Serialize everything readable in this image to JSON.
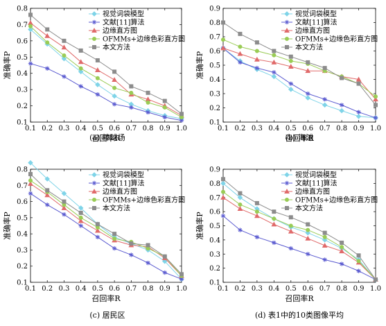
{
  "legend": [
    "视觉词袋模型",
    "文献[11]算法",
    "边缘直方图",
    "OFMMs+边缘色彩直方图",
    "本文方法"
  ],
  "series_styles": [
    {
      "color": "#7fd4e8",
      "marker": "diamond"
    },
    {
      "color": "#5a5ad0",
      "marker": "star"
    },
    {
      "color": "#e06a6a",
      "marker": "triangle"
    },
    {
      "color": "#9acc55",
      "marker": "circle"
    },
    {
      "color": "#8c8c8c",
      "marker": "square"
    }
  ],
  "chart_data": [
    {
      "type": "line",
      "caption": "(a) 棒球场",
      "xlabel": "召回率R",
      "ylabel": "准确率P",
      "xlim": [
        0.1,
        1.0
      ],
      "ylim": [
        0.1,
        0.8
      ],
      "xticks": [
        "0.1",
        "0.2",
        "0.3",
        "0.4",
        "0.5",
        "0.6",
        "0.7",
        "0.8",
        "0.9",
        "1.0"
      ],
      "yticks": [
        "0.1",
        "0.2",
        "0.3",
        "0.4",
        "0.5",
        "0.6",
        "0.7",
        "0.8"
      ],
      "x": [
        0.1,
        0.2,
        0.3,
        0.4,
        0.5,
        0.6,
        0.7,
        0.8,
        0.9,
        1.0
      ],
      "series": [
        {
          "name": "视觉词袋模型",
          "values": [
            0.67,
            0.58,
            0.49,
            0.41,
            0.33,
            0.26,
            0.21,
            0.17,
            0.14,
            0.12
          ]
        },
        {
          "name": "文献[11]算法",
          "values": [
            0.46,
            0.43,
            0.38,
            0.32,
            0.27,
            0.21,
            0.19,
            0.16,
            0.13,
            0.11
          ]
        },
        {
          "name": "边缘直方图",
          "values": [
            0.71,
            0.63,
            0.56,
            0.47,
            0.42,
            0.36,
            0.27,
            0.24,
            0.2,
            0.14
          ]
        },
        {
          "name": "OFMMs+边缘色彩直方图",
          "values": [
            0.69,
            0.59,
            0.51,
            0.43,
            0.37,
            0.31,
            0.28,
            0.22,
            0.19,
            0.13
          ]
        },
        {
          "name": "本文方法",
          "values": [
            0.76,
            0.67,
            0.6,
            0.54,
            0.48,
            0.41,
            0.32,
            0.28,
            0.23,
            0.15
          ]
        }
      ]
    },
    {
      "type": "line",
      "caption": "(b) 海滩",
      "xlabel": "召回率R",
      "ylabel": "准确率P",
      "xlim": [
        0.1,
        1.0
      ],
      "ylim": [
        0.1,
        0.9
      ],
      "xticks": [
        "0.1",
        "0.2",
        "0.3",
        "0.4",
        "0.5",
        "0.6",
        "0.7",
        "0.8",
        "0.9",
        "1.0"
      ],
      "yticks": [
        "0.1",
        "0.2",
        "0.3",
        "0.4",
        "0.5",
        "0.6",
        "0.7",
        "0.8",
        "0.9"
      ],
      "x": [
        0.1,
        0.2,
        0.3,
        0.4,
        0.5,
        0.6,
        0.7,
        0.8,
        0.9,
        1.0
      ],
      "series": [
        {
          "name": "视觉词袋模型",
          "values": [
            0.62,
            0.53,
            0.47,
            0.42,
            0.33,
            0.27,
            0.22,
            0.18,
            0.14,
            0.13
          ]
        },
        {
          "name": "文献[11]算法",
          "values": [
            0.62,
            0.52,
            0.48,
            0.45,
            0.37,
            0.3,
            0.26,
            0.22,
            0.17,
            0.13
          ]
        },
        {
          "name": "边缘直方图",
          "values": [
            0.62,
            0.58,
            0.54,
            0.52,
            0.49,
            0.46,
            0.46,
            0.42,
            0.4,
            0.26
          ]
        },
        {
          "name": "OFMMs+边缘色彩直方图",
          "values": [
            0.68,
            0.63,
            0.6,
            0.57,
            0.53,
            0.51,
            0.46,
            0.42,
            0.37,
            0.28
          ]
        },
        {
          "name": "本文方法",
          "values": [
            0.8,
            0.72,
            0.66,
            0.6,
            0.56,
            0.52,
            0.48,
            0.41,
            0.37,
            0.22
          ]
        }
      ]
    },
    {
      "type": "line",
      "caption": "(c) 居民区",
      "xlabel": "召回率R",
      "ylabel": "准确率P",
      "xlim": [
        0.1,
        1.0
      ],
      "ylim": [
        0.1,
        0.8
      ],
      "xticks": [
        "0.1",
        "0.2",
        "0.3",
        "0.4",
        "0.5",
        "0.6",
        "0.7",
        "0.8",
        "0.9",
        "1.0"
      ],
      "yticks": [
        "0.1",
        "0.2",
        "0.3",
        "0.4",
        "0.5",
        "0.6",
        "0.7",
        "0.8"
      ],
      "x": [
        0.1,
        0.2,
        0.3,
        0.4,
        0.5,
        0.6,
        0.7,
        0.8,
        0.9,
        1.0
      ],
      "series": [
        {
          "name": "视觉词袋模型",
          "values": [
            0.84,
            0.74,
            0.65,
            0.56,
            0.46,
            0.38,
            0.34,
            0.3,
            0.23,
            0.12
          ]
        },
        {
          "name": "文献[11]算法",
          "values": [
            0.65,
            0.58,
            0.52,
            0.45,
            0.38,
            0.31,
            0.27,
            0.22,
            0.16,
            0.12
          ]
        },
        {
          "name": "边缘直方图",
          "values": [
            0.71,
            0.64,
            0.56,
            0.48,
            0.42,
            0.36,
            0.33,
            0.32,
            0.25,
            0.14
          ]
        },
        {
          "name": "OFMMs+边缘色彩直方图",
          "values": [
            0.73,
            0.66,
            0.58,
            0.5,
            0.44,
            0.37,
            0.35,
            0.31,
            0.26,
            0.14
          ]
        },
        {
          "name": "本文方法",
          "values": [
            0.77,
            0.67,
            0.6,
            0.53,
            0.46,
            0.4,
            0.34,
            0.33,
            0.26,
            0.15
          ]
        }
      ]
    },
    {
      "type": "line",
      "caption": "(d) 表1中的10类图像平均",
      "xlabel": "召回率R",
      "ylabel": "准确率P",
      "xlim": [
        0.1,
        1.0
      ],
      "ylim": [
        0.1,
        0.9
      ],
      "xticks": [
        "0.1",
        "0.2",
        "0.3",
        "0.4",
        "0.5",
        "0.6",
        "0.7",
        "0.8",
        "0.9",
        "1.0"
      ],
      "yticks": [
        "0.1",
        "0.2",
        "0.3",
        "0.4",
        "0.5",
        "0.6",
        "0.7",
        "0.8",
        "0.9"
      ],
      "x": [
        0.1,
        0.2,
        0.3,
        0.4,
        0.5,
        0.6,
        0.7,
        0.8,
        0.9,
        1.0
      ],
      "series": [
        {
          "name": "视觉词袋模型",
          "values": [
            0.8,
            0.7,
            0.62,
            0.55,
            0.49,
            0.45,
            0.4,
            0.34,
            0.26,
            0.12
          ]
        },
        {
          "name": "文献[11]算法",
          "values": [
            0.57,
            0.47,
            0.42,
            0.38,
            0.34,
            0.3,
            0.26,
            0.23,
            0.18,
            0.12
          ]
        },
        {
          "name": "边缘直方图",
          "values": [
            0.7,
            0.62,
            0.57,
            0.51,
            0.46,
            0.41,
            0.36,
            0.32,
            0.24,
            0.12
          ]
        },
        {
          "name": "OFMMs+边缘色彩直方图",
          "values": [
            0.74,
            0.65,
            0.6,
            0.55,
            0.5,
            0.47,
            0.42,
            0.35,
            0.25,
            0.12
          ]
        },
        {
          "name": "本文方法",
          "values": [
            0.83,
            0.73,
            0.66,
            0.6,
            0.56,
            0.51,
            0.45,
            0.38,
            0.29,
            0.12
          ]
        }
      ]
    }
  ]
}
